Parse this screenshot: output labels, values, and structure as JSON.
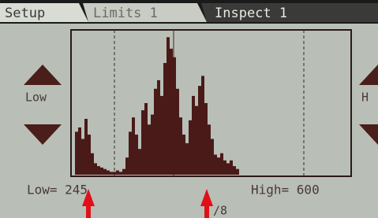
{
  "tabs": [
    "Setup",
    "Limits 1",
    "Inspect 1"
  ],
  "side_labels": {
    "left": "Low",
    "right": "H"
  },
  "footer": {
    "low_label": "Low= 245",
    "high_label": "High= 600",
    "page": "/8"
  },
  "histogram": {
    "ylim": [
      0,
      100
    ],
    "values": [
      30,
      33,
      25,
      39,
      28,
      15,
      8,
      6,
      5,
      4,
      3,
      2,
      2,
      3,
      2,
      4,
      12,
      30,
      40,
      28,
      18,
      45,
      50,
      35,
      42,
      60,
      66,
      55,
      78,
      96,
      88,
      82,
      60,
      40,
      28,
      22,
      38,
      55,
      48,
      62,
      69,
      50,
      35,
      25,
      14,
      12,
      15,
      10,
      8,
      10,
      6,
      4
    ]
  }
}
